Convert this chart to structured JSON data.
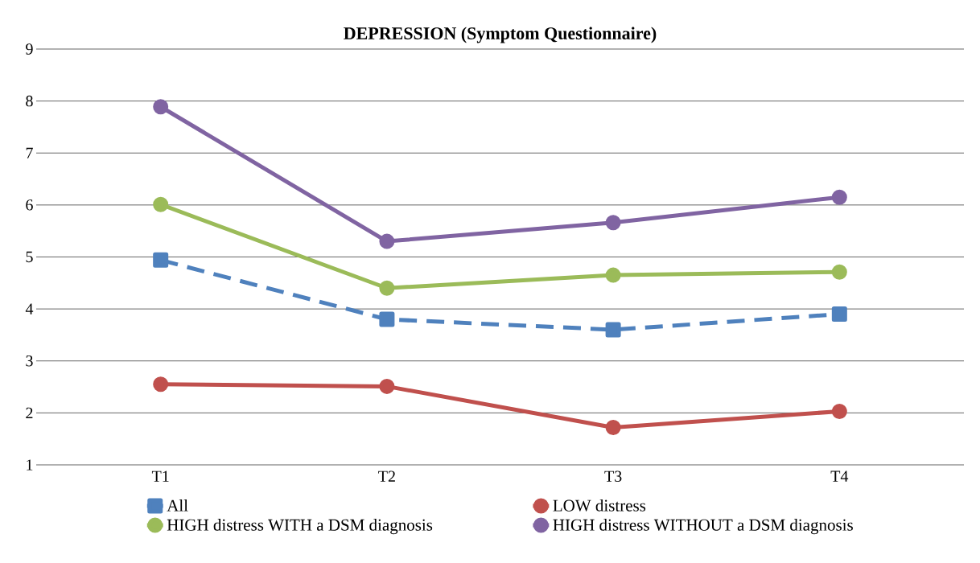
{
  "chart_data": {
    "type": "line",
    "title": "DEPRESSION (Symptom Questionnaire)",
    "categories": [
      "T1",
      "T2",
      "T3",
      "T4"
    ],
    "series": [
      {
        "name": "All",
        "color": "#4f81bd",
        "values": [
          4.94,
          3.8,
          3.6,
          3.9
        ],
        "marker": "square",
        "line_style": "dashed"
      },
      {
        "name": "LOW distress",
        "color": "#c0504d",
        "values": [
          2.55,
          2.51,
          1.72,
          2.03
        ],
        "marker": "circle",
        "line_style": "solid"
      },
      {
        "name": "HIGH distress WITH a DSM diagnosis",
        "color": "#9bbb59",
        "values": [
          6.01,
          4.4,
          4.65,
          4.71
        ],
        "marker": "circle",
        "line_style": "solid"
      },
      {
        "name": "HIGH distress WITHOUT a DSM diagnosis",
        "color": "#8064a2",
        "values": [
          7.89,
          5.3,
          5.66,
          6.15
        ],
        "marker": "circle",
        "line_style": "solid"
      }
    ],
    "ylim": [
      1,
      9
    ],
    "yticks": [
      1,
      2,
      3,
      4,
      5,
      6,
      7,
      8,
      9
    ],
    "grid": "y",
    "legend": "bottom"
  }
}
